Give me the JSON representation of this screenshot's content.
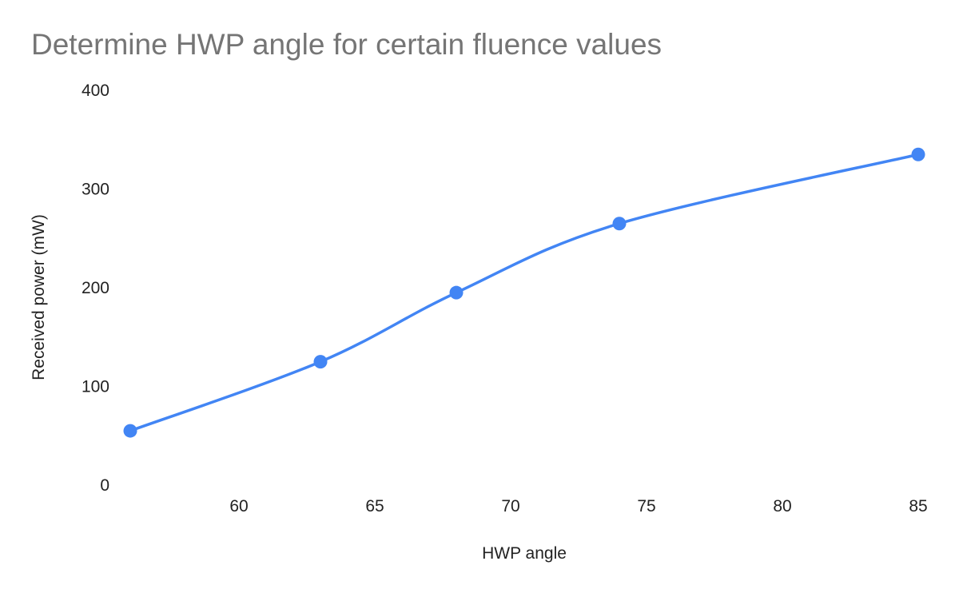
{
  "chart_data": {
    "type": "line",
    "title": "Determine HWP angle for certain fluence values",
    "xlabel": "HWP angle",
    "ylabel": "Received power (mW)",
    "x": [
      56,
      63,
      68,
      74,
      85
    ],
    "series": [
      {
        "values": [
          55,
          125,
          195,
          265,
          335
        ],
        "color": "#4285f4"
      }
    ],
    "xticks": [
      60,
      65,
      70,
      75,
      80,
      85
    ],
    "yticks": [
      0,
      100,
      200,
      300,
      400
    ],
    "xlim": [
      56,
      85
    ],
    "ylim": [
      0,
      400
    ],
    "grid": false,
    "smooth": true,
    "legend": "none"
  }
}
